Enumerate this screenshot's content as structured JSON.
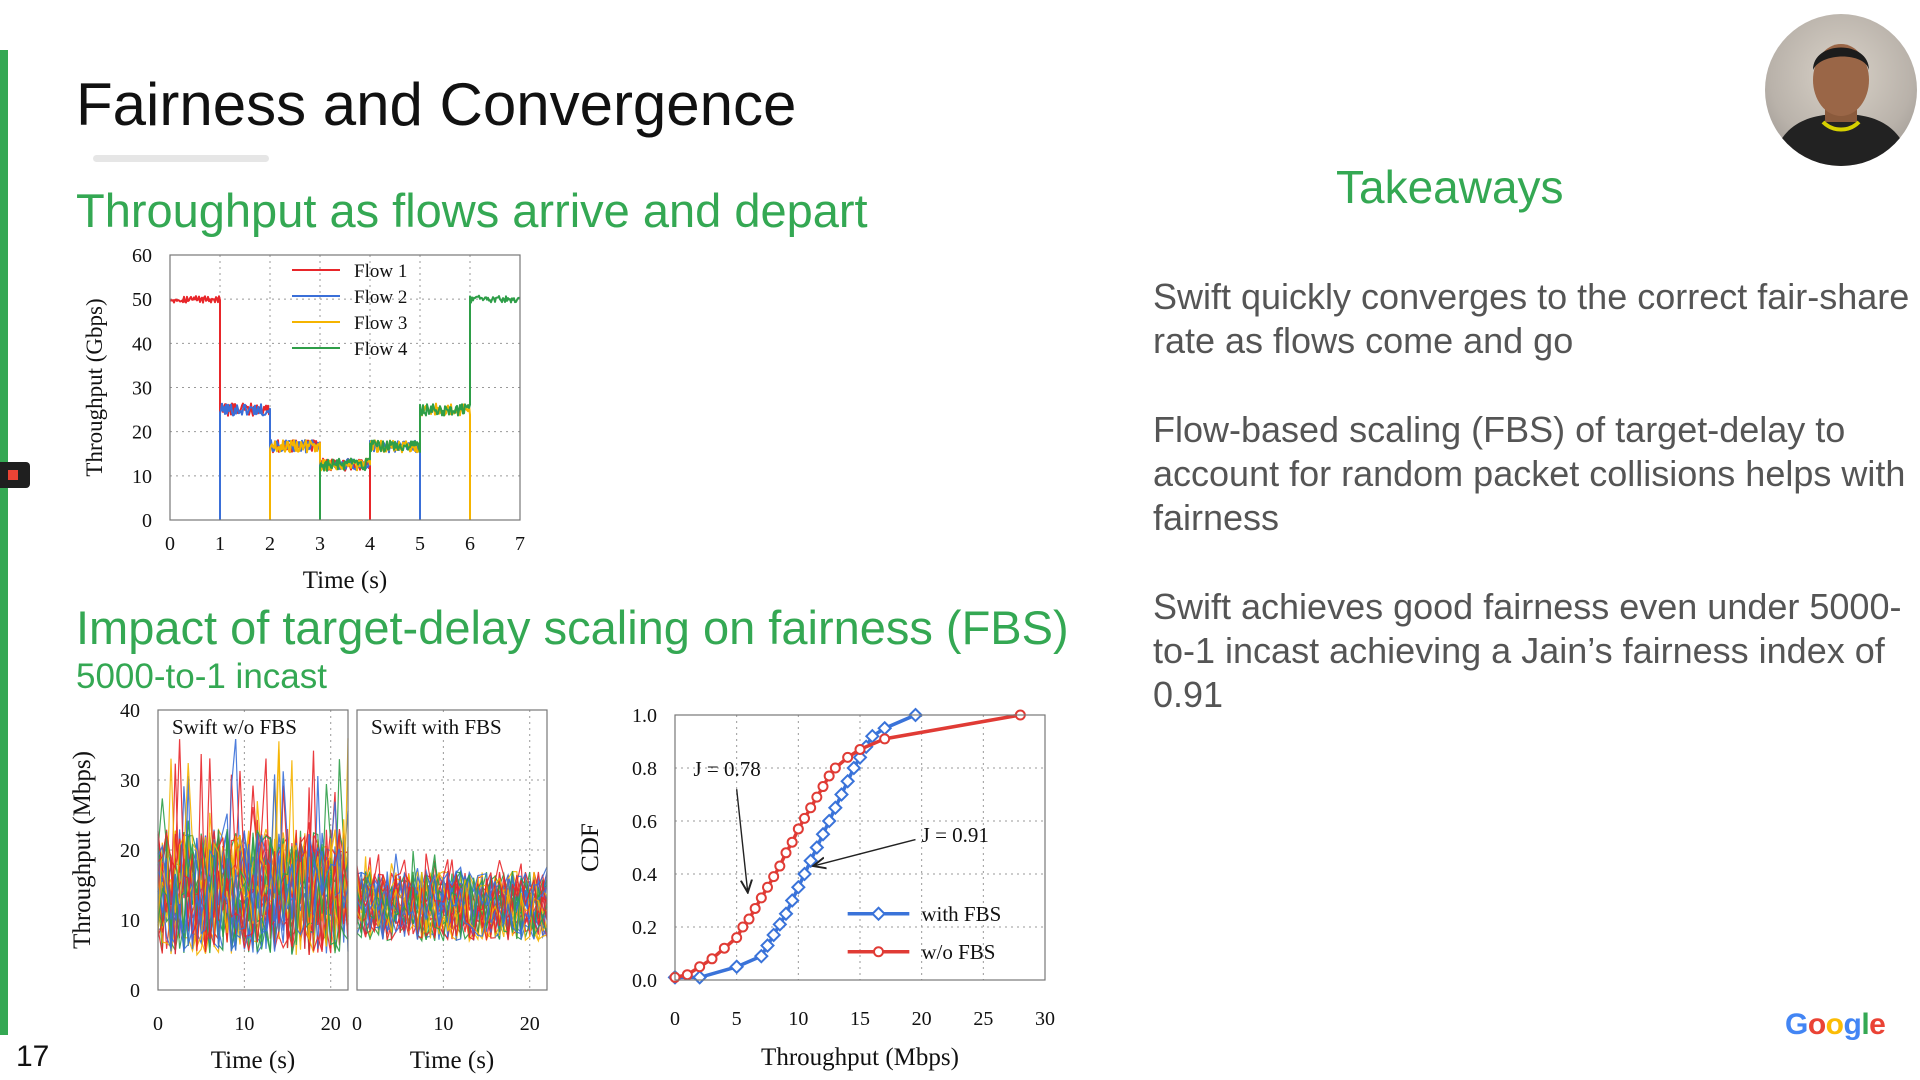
{
  "slide": {
    "title": "Fairness and Convergence",
    "section1_title": "Throughput as flows arrive and depart",
    "section2_title": "Impact of target-delay scaling on fairness (FBS)",
    "section2_subtitle": "5000-to-1 incast",
    "takeaways_title": "Takeaways",
    "takeaways": [
      "Swift quickly converges to the correct fair-share rate as flows come and go",
      "Flow-based scaling (FBS) of target-delay to account for random packet collisions helps with fairness",
      "Swift achieves good fairness even under 5000-to-1 incast achieving a Jain’s fairness index of 0.91"
    ],
    "page_number": "17",
    "logo_letters": [
      "G",
      "o",
      "o",
      "g",
      "l",
      "e"
    ],
    "colors": {
      "accent": "#34a853",
      "title_green": "#34a853",
      "flow1": "#e8262a",
      "flow2": "#3a6fd8",
      "flow3": "#f5b400",
      "flow4": "#2e9e48",
      "with_fbs": "#3a73d9",
      "without_fbs": "#e03b35"
    },
    "icons": [
      "record-icon",
      "speaker-avatar"
    ]
  },
  "chart_data": [
    {
      "type": "line",
      "xlabel": "Time (s)",
      "ylabel": "Throughput (Gbps)",
      "xlim": [
        0,
        7
      ],
      "ylim": [
        0,
        60
      ],
      "xticks": [
        0,
        1,
        2,
        3,
        4,
        5,
        6,
        7
      ],
      "yticks": [
        0,
        10,
        20,
        30,
        40,
        50,
        60
      ],
      "grid": true,
      "legend": "top-center",
      "series": [
        {
          "name": "Flow 1",
          "color": "#e8262a",
          "segments": [
            [
              0,
              1,
              50
            ],
            [
              1,
              2,
              25
            ],
            [
              2,
              3,
              16.7
            ],
            [
              3,
              4,
              12.5
            ]
          ]
        },
        {
          "name": "Flow 2",
          "color": "#3a6fd8",
          "segments": [
            [
              1,
              2,
              25
            ],
            [
              2,
              3,
              16.7
            ],
            [
              3,
              4,
              12.5
            ],
            [
              4,
              5,
              16.7
            ]
          ]
        },
        {
          "name": "Flow 3",
          "color": "#f5b400",
          "segments": [
            [
              2,
              3,
              16.7
            ],
            [
              3,
              4,
              12.5
            ],
            [
              4,
              5,
              16.7
            ],
            [
              5,
              6,
              25
            ]
          ]
        },
        {
          "name": "Flow 4",
          "color": "#2e9e48",
          "segments": [
            [
              3,
              4,
              12.5
            ],
            [
              4,
              5,
              16.7
            ],
            [
              5,
              6,
              25
            ],
            [
              6,
              7,
              50
            ]
          ]
        }
      ]
    },
    {
      "type": "line",
      "title": "Swift w/o FBS",
      "xlabel": "Time (s)",
      "ylabel": "Throughput (Mbps)",
      "xlim": [
        0,
        22
      ],
      "ylim": [
        0,
        40
      ],
      "xticks": [
        0,
        10,
        20
      ],
      "yticks": [
        0,
        10,
        20,
        30,
        40
      ],
      "series_count": 30,
      "mean": 14,
      "spread": 9,
      "peak": 36
    },
    {
      "type": "line",
      "title": "Swift with FBS",
      "xlabel": "Time (s)",
      "xlim": [
        0,
        22
      ],
      "ylim": [
        0,
        40
      ],
      "xticks": [
        0,
        10,
        20
      ],
      "series_count": 30,
      "mean": 12,
      "spread": 5,
      "peak": 20
    },
    {
      "type": "line",
      "xlabel": "Throughput (Mbps)",
      "ylabel": "CDF",
      "xlim": [
        0,
        30
      ],
      "ylim": [
        0,
        1.0
      ],
      "xticks": [
        0,
        5,
        10,
        15,
        20,
        25,
        30
      ],
      "yticks": [
        0.0,
        0.2,
        0.4,
        0.6,
        0.8,
        1.0
      ],
      "legend": "bottom-right",
      "series": [
        {
          "name": "with FBS",
          "color": "#3a73d9",
          "marker": "diamond",
          "x": [
            0,
            2,
            5,
            7,
            7.5,
            8,
            8.5,
            9,
            9.5,
            10,
            10.5,
            11,
            11.5,
            12,
            12.5,
            13,
            13.5,
            14,
            14.5,
            15,
            15.5,
            16,
            17,
            19.5
          ],
          "y": [
            0.01,
            0.01,
            0.05,
            0.09,
            0.13,
            0.17,
            0.21,
            0.25,
            0.3,
            0.35,
            0.4,
            0.45,
            0.5,
            0.55,
            0.6,
            0.65,
            0.7,
            0.75,
            0.8,
            0.84,
            0.88,
            0.92,
            0.95,
            1.0
          ]
        },
        {
          "name": "w/o FBS",
          "color": "#e03b35",
          "marker": "circle",
          "x": [
            0,
            1,
            2,
            3,
            4,
            5,
            5.5,
            6,
            6.5,
            7,
            7.5,
            8,
            8.5,
            9,
            9.5,
            10,
            10.5,
            11,
            11.5,
            12,
            12.5,
            13,
            14,
            15,
            17,
            28
          ],
          "y": [
            0.01,
            0.02,
            0.05,
            0.08,
            0.12,
            0.16,
            0.2,
            0.23,
            0.27,
            0.31,
            0.35,
            0.39,
            0.43,
            0.48,
            0.52,
            0.57,
            0.61,
            0.65,
            0.69,
            0.73,
            0.77,
            0.8,
            0.84,
            0.87,
            0.91,
            1.0
          ]
        }
      ],
      "annotations": [
        {
          "text": "J = 0.78"
        },
        {
          "text": "J = 0.91"
        }
      ]
    }
  ]
}
